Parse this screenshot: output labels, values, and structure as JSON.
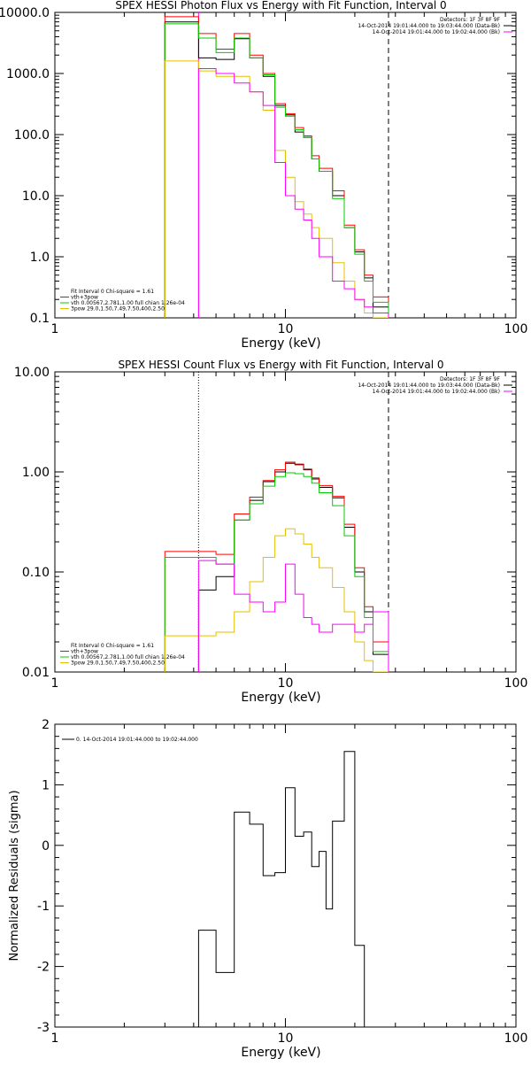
{
  "chart_data": [
    {
      "type": "line",
      "title": "SPEX HESSI Photon Flux vs Energy with Fit Function, Interval 0",
      "xlabel": "Energy (keV)",
      "ylabel": "",
      "xscale": "log",
      "yscale": "log",
      "xlim": [
        1,
        100
      ],
      "ylim": [
        0.1,
        10000
      ],
      "x_ticks": [
        "1",
        "10",
        "100"
      ],
      "y_ticks": [
        "0.1",
        "1.0",
        "10.0",
        "100.0",
        "1000.0",
        "10000.0"
      ],
      "vlines": [
        {
          "x": 4.2,
          "style": "solid",
          "color": "#ff00ff"
        },
        {
          "x": 28,
          "style": "dashed",
          "color": "#000000"
        }
      ],
      "legend_topright": [
        "Detectors: 1F 3F 8F 9F",
        "14-Oct-2014 19:01:44.000 to 19:03:44.000 (Data-Bk)",
        "14-Oct-2014 19:01:44.000 to 19:02:44.000 (Bk)"
      ],
      "legend_topright_colors": [
        "#000000",
        "#000000",
        "#ff00ff"
      ],
      "legend_bottomleft": [
        "Fit Interval 0   Chi-square = 1.61",
        "vth+3pow",
        "vth 0.00567,2.781,1.00  full chian 1.26e-04",
        "3pow 29.0,1.50,7.49,7.50,400,2.50"
      ],
      "legend_bottomleft_colors": [
        "#000000",
        "#ff0000",
        "#00cc00",
        "#e6c000"
      ],
      "edges": [
        3,
        4.2,
        5,
        6,
        7,
        8,
        9,
        10,
        11,
        12,
        13,
        14,
        16,
        18,
        20,
        22,
        24,
        28
      ],
      "series": [
        {
          "color": "#000000",
          "values": [
            7000,
            1800,
            1700,
            3700,
            1800,
            900,
            300,
            210,
            110,
            90,
            40,
            25,
            10,
            3,
            1.2,
            0.45,
            0.15
          ]
        },
        {
          "color": "#ff0000",
          "values": [
            8500,
            4500,
            2500,
            4500,
            2000,
            1000,
            320,
            220,
            130,
            95,
            45,
            28,
            12,
            3.3,
            1.3,
            0.5,
            0.22
          ]
        },
        {
          "color": "#00cc00",
          "values": [
            6500,
            3800,
            2200,
            3800,
            1800,
            950,
            280,
            200,
            120,
            90,
            40,
            25,
            9,
            3,
            1.1,
            0.4,
            0.18
          ]
        },
        {
          "color": "#e6c000",
          "values": [
            1600,
            1100,
            900,
            900,
            500,
            250,
            55,
            20,
            8,
            5,
            3,
            2,
            0.8,
            0.4,
            0.2,
            0.12,
            0.08
          ]
        },
        {
          "color": "#ff00ff",
          "values": [
            null,
            1200,
            1000,
            700,
            500,
            300,
            35,
            10,
            6,
            4,
            2,
            1,
            0.4,
            0.3,
            0.2,
            0.15,
            0.12
          ]
        }
      ]
    },
    {
      "type": "line",
      "title": "SPEX HESSI Count Flux vs Energy with Fit Function, Interval 0",
      "xlabel": "Energy (keV)",
      "ylabel": "",
      "xscale": "log",
      "yscale": "log",
      "xlim": [
        1,
        100
      ],
      "ylim": [
        0.01,
        10
      ],
      "x_ticks": [
        "1",
        "10",
        "100"
      ],
      "y_ticks": [
        "0.01",
        "0.10",
        "1.00",
        "10.00"
      ],
      "vlines": [
        {
          "x": 4.2,
          "style": "dotted",
          "color": "#000000"
        },
        {
          "x": 28,
          "style": "dashed",
          "color": "#000000"
        }
      ],
      "legend_topright": [
        "Detectors: 1F 3F 8F 9F",
        "14-Oct-2014 19:01:44.000 to 19:03:44.000 (Data-Bk)",
        "14-Oct-2014 19:01:44.000 to 19:02:44.000 (Bk)"
      ],
      "legend_topright_colors": [
        "#000000",
        "#000000",
        "#ff00ff"
      ],
      "legend_bottomleft": [
        "Fit Interval 0   Chi-square = 1.61",
        "vth+3pow",
        "vth 0.00567,2.781,1.00  full chian 1.26e-04",
        "3pow 29.0,1.50,7.49,7.50,400,2.50"
      ],
      "legend_bottomleft_colors": [
        "#000000",
        "#ff0000",
        "#00cc00",
        "#e6c000"
      ],
      "edges": [
        3,
        4.2,
        5,
        6,
        7,
        8,
        9,
        10,
        11,
        12,
        13,
        14,
        16,
        18,
        20,
        22,
        24,
        28
      ],
      "series": [
        {
          "color": "#000000",
          "values": [
            null,
            0.066,
            0.09,
            0.33,
            0.52,
            0.8,
            1.0,
            1.22,
            1.18,
            1.05,
            0.85,
            0.7,
            0.55,
            0.28,
            0.1,
            0.04,
            0.015
          ]
        },
        {
          "color": "#ff0000",
          "values": [
            0.16,
            0.16,
            0.15,
            0.38,
            0.56,
            0.82,
            1.05,
            1.25,
            1.2,
            1.07,
            0.87,
            0.73,
            0.57,
            0.3,
            0.11,
            0.045,
            0.02
          ]
        },
        {
          "color": "#00cc00",
          "values": [
            0.14,
            0.14,
            0.12,
            0.33,
            0.48,
            0.72,
            0.9,
            0.98,
            0.96,
            0.9,
            0.77,
            0.62,
            0.46,
            0.23,
            0.09,
            0.035,
            0.016
          ]
        },
        {
          "color": "#e6c000",
          "values": [
            0.023,
            0.023,
            0.025,
            0.04,
            0.08,
            0.14,
            0.23,
            0.27,
            0.24,
            0.19,
            0.14,
            0.11,
            0.07,
            0.04,
            0.02,
            0.013,
            0.01
          ]
        },
        {
          "color": "#ff00ff",
          "values": [
            null,
            0.13,
            0.12,
            0.06,
            0.05,
            0.04,
            0.05,
            0.12,
            0.06,
            0.035,
            0.03,
            0.025,
            0.03,
            0.03,
            0.025,
            0.03,
            0.04
          ]
        }
      ]
    },
    {
      "type": "line",
      "title": "",
      "xlabel": "Energy (keV)",
      "ylabel": "Normalized Residuals (sigma)",
      "xscale": "log",
      "yscale": "linear",
      "xlim": [
        1,
        100
      ],
      "ylim": [
        -3,
        2
      ],
      "x_ticks": [
        "1",
        "10",
        "100"
      ],
      "y_ticks": [
        "-3",
        "-2",
        "-1",
        "0",
        "1",
        "2"
      ],
      "legend_topleft": [
        "0. 14-Oct-2014 19:01:44.000 to 19:02:44.000"
      ],
      "edges": [
        4.2,
        5,
        6,
        7,
        8,
        9,
        10,
        11,
        12,
        13,
        14,
        15,
        16,
        18,
        20,
        22,
        24,
        28
      ],
      "series": [
        {
          "color": "#000000",
          "values": [
            -1.4,
            -2.1,
            0.55,
            0.35,
            -0.5,
            -0.45,
            0.95,
            0.15,
            0.22,
            -0.35,
            -0.1,
            -1.05,
            0.4,
            1.55,
            -1.65,
            -3.0,
            -3.0
          ]
        }
      ]
    }
  ]
}
